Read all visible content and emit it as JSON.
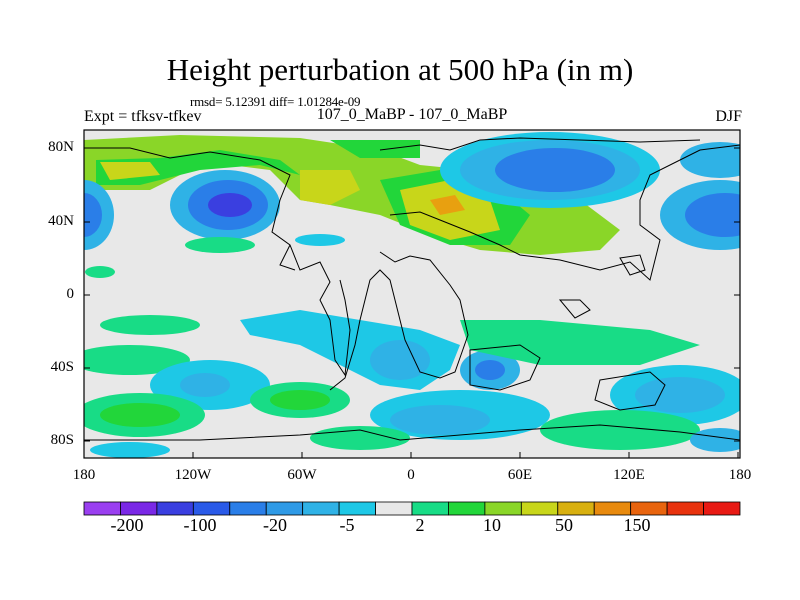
{
  "title": "Height perturbation at 500 hPa (in m)",
  "stats": "rmsd= 5.12391 diff= 1.01284e-09",
  "expt": "Expt = tfksv-tfkev",
  "models": "107_0_MaBP - 107_0_MaBP",
  "season": "DJF",
  "map": {
    "lon_ticks": [
      "180",
      "120W",
      "60W",
      "0",
      "60E",
      "120E",
      "180"
    ],
    "lat_ticks": [
      "80N",
      "40N",
      "0",
      "40S",
      "80S"
    ]
  },
  "colorbar": {
    "labels": [
      "-200",
      "-100",
      "-20",
      "-5",
      "2",
      "10",
      "50",
      "150"
    ],
    "colors": [
      "#9a3ff0",
      "#7a28e6",
      "#3a3fe0",
      "#2a5ae8",
      "#2a7ee8",
      "#2f9ae6",
      "#2fb2e6",
      "#1ec8e6",
      "#e8e8e8",
      "#18dc86",
      "#22d63a",
      "#8ad628",
      "#c8d61a",
      "#d8b010",
      "#e88a0e",
      "#e8640e",
      "#e8320e",
      "#e81a14"
    ]
  }
}
